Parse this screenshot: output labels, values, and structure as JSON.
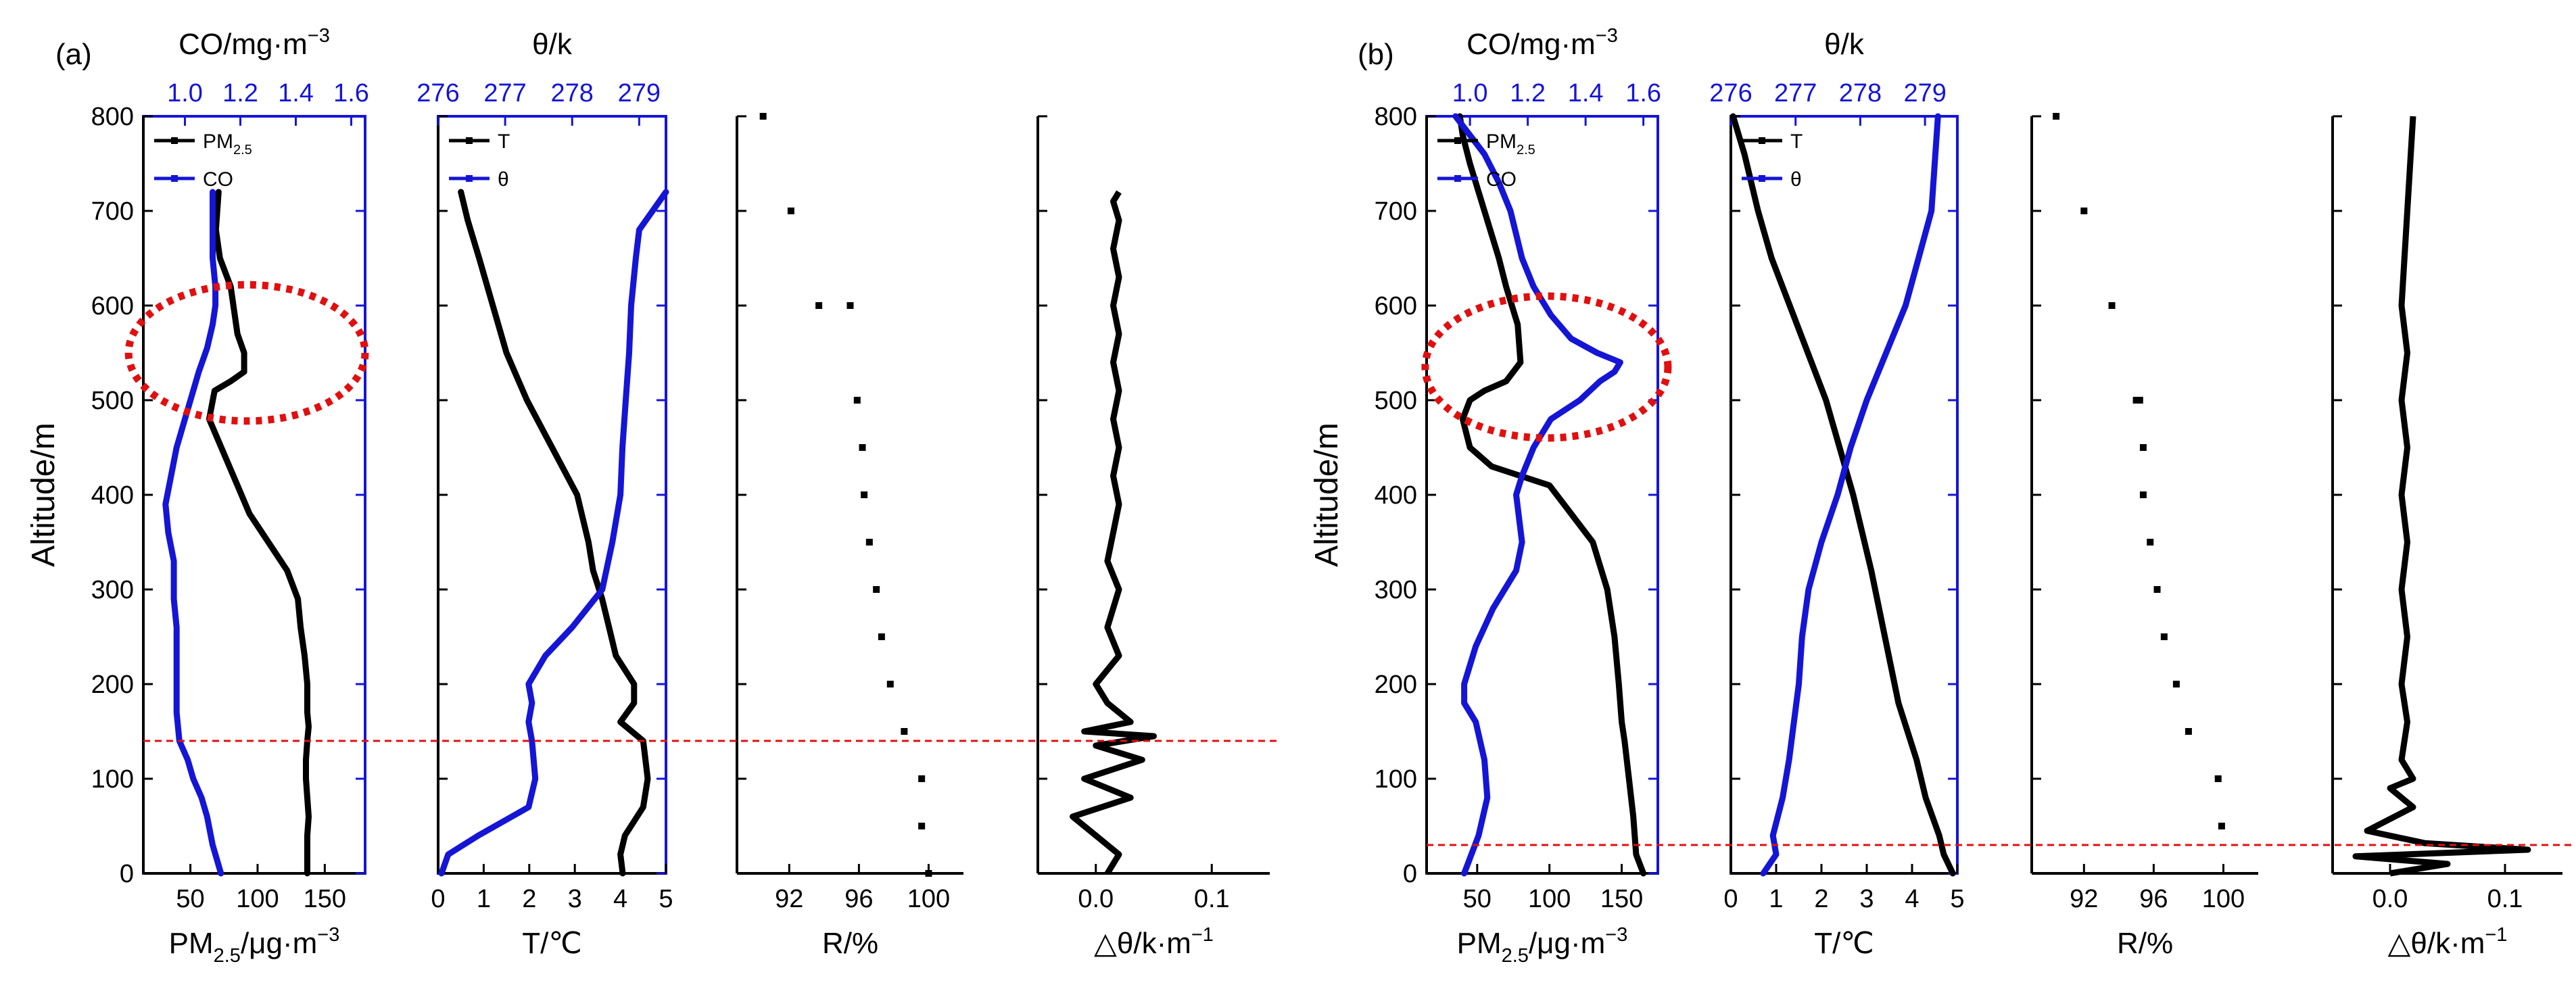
{
  "colors": {
    "pm": "#000000",
    "co": "#1515d6",
    "T": "#000000",
    "theta": "#1515d6",
    "marker": "#e01010",
    "axis_blue": "#1515d6"
  },
  "chart_data": [
    {
      "panel": "(a)",
      "panel_label": "(a)",
      "ylabel": "Altitude/m",
      "ylim": [
        0,
        800
      ],
      "yticks": [
        "0",
        "100",
        "200",
        "300",
        "400",
        "500",
        "600",
        "700",
        "800"
      ],
      "inversion_line_altitude": 140,
      "highlight_ellipse": {
        "center_x_pm": 92,
        "center_altitude": 550,
        "half_width_pm": 88,
        "half_height_altitude": 72
      },
      "subplots": [
        {
          "type": "line",
          "xlabel": "PM2.5/μg·m-3",
          "xlim": [
            15,
            180
          ],
          "xticks": [
            "50",
            "100",
            "150"
          ],
          "top_axis": {
            "title": "CO/mg·m-3",
            "xlim": [
              0.85,
              1.65
            ],
            "ticks": [
              "1.0",
              "1.2",
              "1.4",
              "1.6"
            ]
          },
          "legend": [
            "PM2.5",
            "CO"
          ],
          "series": [
            {
              "name": "PM2.5",
              "x": [
                137,
                137,
                138,
                136,
                136,
                137,
                138,
                137,
                137,
                135,
                132,
                130,
                122,
                108,
                94,
                85,
                73,
                64,
                68,
                80,
                90,
                90,
                85,
                82,
                80,
                72,
                69,
                70,
                71
              ],
              "y": [
                0,
                40,
                60,
                100,
                120,
                140,
                155,
                170,
                200,
                230,
                260,
                290,
                320,
                350,
                380,
                410,
                450,
                480,
                510,
                520,
                530,
                550,
                570,
                600,
                620,
                650,
                680,
                700,
                720
              ]
            },
            {
              "name": "CO",
              "x": [
                1.13,
                1.1,
                1.08,
                1.06,
                1.03,
                1.01,
                0.98,
                0.97,
                0.97,
                0.97,
                0.97,
                0.96,
                0.96,
                0.96,
                0.94,
                0.93,
                0.95,
                0.97,
                0.99,
                1.01,
                1.03,
                1.05,
                1.08,
                1.1,
                1.11,
                1.11,
                1.1,
                1.1,
                1.1
              ],
              "y": [
                0,
                30,
                60,
                80,
                100,
                120,
                140,
                170,
                200,
                230,
                260,
                290,
                300,
                330,
                360,
                390,
                420,
                450,
                470,
                490,
                510,
                530,
                555,
                580,
                600,
                620,
                650,
                680,
                720
              ]
            }
          ]
        },
        {
          "type": "line",
          "xlabel": "T/℃",
          "xlim": [
            0,
            5
          ],
          "xticks": [
            "0",
            "1",
            "2",
            "3",
            "4",
            "5"
          ],
          "top_axis": {
            "title": "θ/k",
            "xlim": [
              276,
              279.4
            ],
            "ticks": [
              "276",
              "277",
              "278",
              "279"
            ]
          },
          "legend": [
            "T",
            "θ"
          ],
          "series": [
            {
              "name": "T",
              "x": [
                4.05,
                4.0,
                4.1,
                4.5,
                4.6,
                4.5,
                4.0,
                4.3,
                4.3,
                3.9,
                3.75,
                3.6,
                3.4,
                3.3,
                3.05,
                2.5,
                1.95,
                1.5,
                1.2,
                0.9,
                0.65,
                0.5
              ],
              "y": [
                0,
                20,
                40,
                70,
                100,
                140,
                160,
                180,
                200,
                230,
                260,
                290,
                320,
                350,
                400,
                450,
                500,
                550,
                600,
                650,
                690,
                720
              ]
            },
            {
              "name": "θ",
              "x": [
                276.05,
                276.15,
                276.6,
                277.35,
                277.45,
                277.4,
                277.35,
                277.4,
                277.35,
                277.6,
                278.0,
                278.45,
                278.6,
                278.72,
                278.75,
                278.8,
                278.85,
                278.88,
                278.95,
                279.0,
                279.2,
                279.3,
                279.4
              ],
              "y": [
                0,
                20,
                40,
                70,
                100,
                140,
                160,
                180,
                200,
                230,
                260,
                300,
                350,
                400,
                450,
                500,
                550,
                600,
                650,
                680,
                700,
                710,
                720
              ]
            }
          ]
        },
        {
          "type": "scatter",
          "xlabel": "R/%",
          "xlim": [
            89,
            102
          ],
          "xticks": [
            "92",
            "96",
            "100"
          ],
          "series": [
            {
              "name": "R",
              "x": [
                100,
                99.6,
                99.6,
                98.6,
                97.8,
                97.3,
                97,
                96.6,
                96.3,
                96.2,
                95.9,
                95.5,
                93.7,
                92.1,
                90.5
              ],
              "y": [
                0,
                50,
                100,
                150,
                200,
                250,
                300,
                350,
                400,
                450,
                500,
                600,
                600,
                700,
                800
              ]
            }
          ]
        },
        {
          "type": "line",
          "xlabel": "△θ/k·m-1",
          "xlim": [
            -0.05,
            0.15
          ],
          "xticks": [
            "0.0",
            "0.1"
          ],
          "series": [
            {
              "name": "△θ",
              "x": [
                0.01,
                0.02,
                0.0,
                -0.02,
                0.03,
                -0.01,
                0.04,
                0.0,
                0.05,
                -0.01,
                0.03,
                0.01,
                0.0,
                0.02,
                0.01,
                0.02,
                0.01,
                0.015,
                0.02,
                0.015,
                0.02,
                0.015,
                0.02,
                0.015,
                0.02,
                0.015,
                0.02,
                0.015,
                0.02,
                0.015,
                0.02
              ],
              "y": [
                0,
                20,
                40,
                60,
                80,
                100,
                120,
                135,
                145,
                150,
                160,
                180,
                200,
                230,
                260,
                300,
                330,
                360,
                390,
                420,
                450,
                480,
                510,
                540,
                570,
                600,
                630,
                660,
                690,
                710,
                720
              ]
            }
          ]
        }
      ]
    },
    {
      "panel": "(b)",
      "panel_label": "(b)",
      "ylabel": "Altitude/m",
      "ylim": [
        0,
        800
      ],
      "yticks": [
        "0",
        "100",
        "200",
        "300",
        "400",
        "500",
        "600",
        "700",
        "800"
      ],
      "inversion_line_altitude": 30,
      "highlight_ellipse": {
        "center_x_pm": 98,
        "center_altitude": 535,
        "half_width_pm": 84,
        "half_height_altitude": 75
      },
      "subplots": [
        {
          "type": "line",
          "xlabel": "PM2.5/μg·m-3",
          "xlim": [
            15,
            175
          ],
          "xticks": [
            "50",
            "100",
            "150"
          ],
          "top_axis": {
            "title": "CO/mg·m-3",
            "xlim": [
              0.85,
              1.65
            ],
            "ticks": [
              "1.0",
              "1.2",
              "1.4",
              "1.6"
            ]
          },
          "legend": [
            "PM2.5",
            "CO"
          ],
          "series": [
            {
              "name": "PM2.5",
              "x": [
                165,
                160,
                158,
                155,
                152,
                150,
                148,
                145,
                140,
                130,
                120,
                115,
                110,
                105,
                100,
                80,
                60,
                45,
                40,
                45,
                55,
                70,
                80,
                78,
                74,
                70,
                65,
                55,
                45,
                40,
                38
              ],
              "y": [
                0,
                20,
                60,
                100,
                140,
                160,
                200,
                250,
                300,
                350,
                370,
                380,
                390,
                400,
                410,
                420,
                430,
                450,
                480,
                500,
                510,
                520,
                540,
                580,
                600,
                620,
                650,
                700,
                750,
                780,
                800
              ]
            },
            {
              "name": "CO",
              "x": [
                0.98,
                1.03,
                1.06,
                1.05,
                1.02,
                0.98,
                0.98,
                1.02,
                1.08,
                1.16,
                1.18,
                1.16,
                1.18,
                1.22,
                1.28,
                1.38,
                1.45,
                1.5,
                1.52,
                1.44,
                1.35,
                1.28,
                1.22,
                1.18,
                1.14,
                1.1,
                1.05,
                1.0,
                0.95
              ],
              "y": [
                0,
                40,
                80,
                120,
                160,
                180,
                200,
                240,
                280,
                320,
                350,
                400,
                420,
                450,
                480,
                500,
                520,
                530,
                540,
                550,
                565,
                590,
                620,
                650,
                700,
                730,
                760,
                780,
                800
              ]
            }
          ]
        },
        {
          "type": "line",
          "xlabel": "T/℃",
          "xlim": [
            0,
            5
          ],
          "xticks": [
            "0",
            "1",
            "2",
            "3",
            "4",
            "5"
          ],
          "top_axis": {
            "title": "θ/k",
            "xlim": [
              276,
              279.5
            ],
            "ticks": [
              "276",
              "277",
              "278",
              "279"
            ]
          },
          "legend": [
            "T",
            "θ"
          ],
          "series": [
            {
              "name": "T",
              "x": [
                4.9,
                4.7,
                4.6,
                4.3,
                4.1,
                3.7,
                3.4,
                3.1,
                2.7,
                2.4,
                2.1,
                1.7,
                1.3,
                0.9,
                0.6,
                0.3,
                0.05
              ],
              "y": [
                0,
                20,
                40,
                80,
                120,
                180,
                250,
                320,
                400,
                450,
                500,
                550,
                600,
                650,
                700,
                760,
                800
              ]
            },
            {
              "name": "θ",
              "x": [
                276.5,
                276.7,
                276.65,
                276.8,
                276.9,
                277.05,
                277.1,
                277.2,
                277.4,
                277.65,
                277.85,
                278.1,
                278.4,
                278.7,
                278.9,
                279.1,
                279.2
              ],
              "y": [
                0,
                20,
                40,
                80,
                120,
                200,
                250,
                300,
                350,
                400,
                450,
                500,
                550,
                600,
                650,
                700,
                800
              ]
            }
          ]
        },
        {
          "type": "scatter",
          "xlabel": "R/%",
          "xlim": [
            89,
            102
          ],
          "xticks": [
            "92",
            "96",
            "100"
          ],
          "series": [
            {
              "name": "R",
              "x": [
                99.9,
                99.7,
                98,
                97.3,
                96.6,
                96.2,
                95.8,
                95.4,
                95.4,
                95.2,
                95,
                93.6,
                92,
                90.4
              ],
              "y": [
                50,
                100,
                150,
                200,
                250,
                300,
                350,
                400,
                450,
                500,
                500,
                600,
                700,
                800
              ]
            }
          ]
        },
        {
          "type": "line",
          "xlabel": "△θ/k·m-1",
          "xlim": [
            -0.05,
            0.15
          ],
          "xticks": [
            "0.0",
            "0.1"
          ],
          "series": [
            {
              "name": "△θ",
              "x": [
                0.0,
                0.05,
                -0.03,
                0.12,
                0.03,
                -0.02,
                0.02,
                0.0,
                0.02,
                0.01,
                0.015,
                0.01,
                0.015,
                0.01,
                0.015,
                0.01,
                0.015,
                0.01,
                0.015,
                0.01,
                0.015,
                0.02
              ],
              "y": [
                0,
                10,
                18,
                25,
                32,
                45,
                70,
                90,
                100,
                120,
                160,
                200,
                250,
                300,
                350,
                400,
                450,
                500,
                550,
                600,
                700,
                800
              ]
            }
          ]
        }
      ]
    }
  ]
}
